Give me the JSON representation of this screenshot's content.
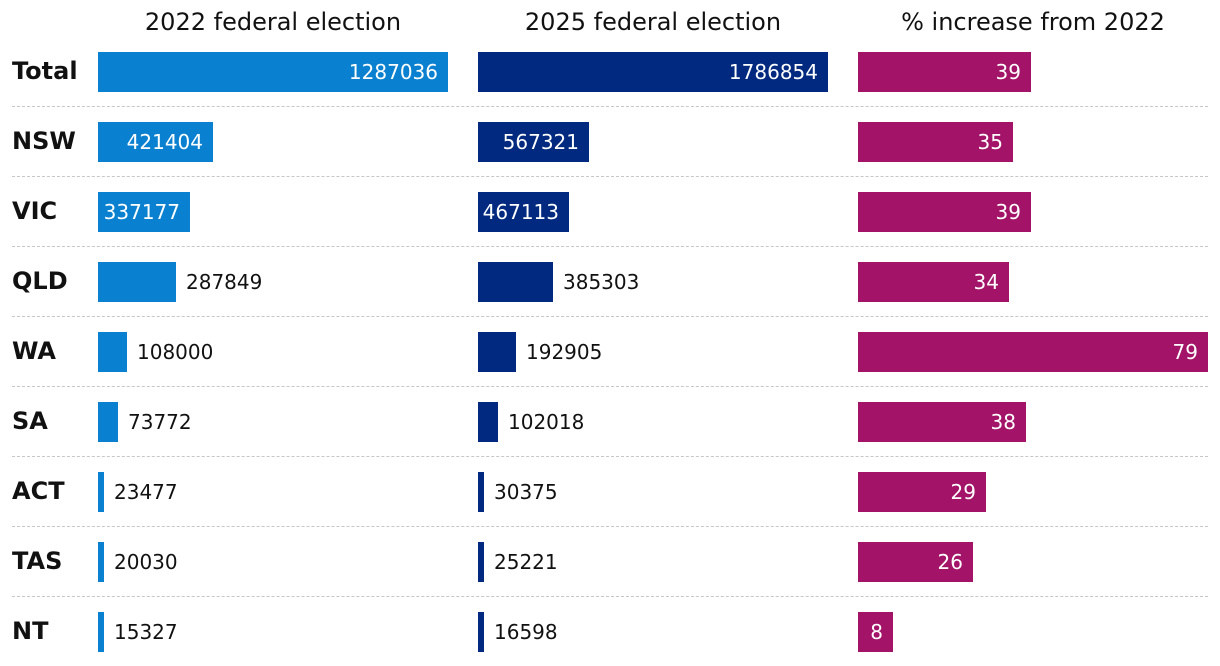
{
  "chart_data": {
    "type": "bar",
    "orientation": "horizontal",
    "categories": [
      "Total",
      "NSW",
      "VIC",
      "QLD",
      "WA",
      "SA",
      "ACT",
      "TAS",
      "NT"
    ],
    "series": [
      {
        "name": "2022 federal election",
        "color": "#0a80d0",
        "values": [
          1287036,
          421404,
          337177,
          287849,
          108000,
          73772,
          23477,
          20030,
          15327
        ],
        "labels": [
          "1287036",
          "421404",
          "337177",
          "287849",
          "108000",
          "73772",
          "23477",
          "20030",
          "15327"
        ]
      },
      {
        "name": "2025 federal election",
        "color": "#00297f",
        "values": [
          1786854,
          567321,
          467113,
          385303,
          192905,
          102018,
          30375,
          25221,
          16598
        ],
        "labels": [
          "1786854",
          "567321",
          "467113",
          "385303",
          "192905",
          "102018",
          "30375",
          "25221",
          "16598"
        ]
      },
      {
        "name": "% increase from 2022",
        "color": "#a31368",
        "values": [
          39,
          35,
          39,
          34,
          79,
          38,
          29,
          26,
          8
        ],
        "labels": [
          "39",
          "35",
          "39",
          "34",
          "79",
          "38",
          "29",
          "26",
          "8"
        ]
      }
    ],
    "xlim": [
      [
        0,
        1287036
      ],
      [
        0,
        1786854
      ],
      [
        0,
        79
      ]
    ]
  }
}
